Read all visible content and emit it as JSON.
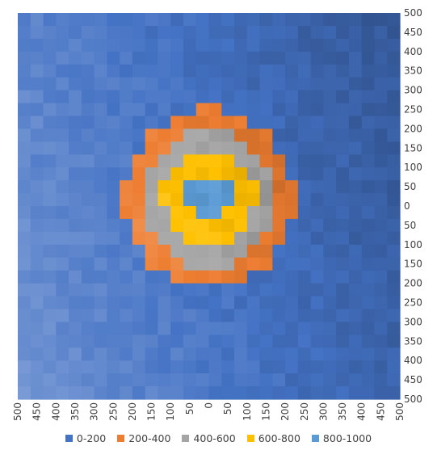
{
  "chart_data": {
    "type": "heatmap",
    "subtype": "3d-surface-contour-top-view",
    "x": [
      500,
      450,
      400,
      350,
      300,
      250,
      200,
      150,
      100,
      50,
      0,
      50,
      100,
      150,
      200,
      250,
      300,
      350,
      400,
      450,
      500
    ],
    "y": [
      500,
      450,
      400,
      350,
      300,
      250,
      200,
      150,
      100,
      50,
      0,
      50,
      100,
      150,
      200,
      250,
      300,
      350,
      400,
      450,
      500
    ],
    "xlabel": "",
    "ylabel": "",
    "zbands": [
      {
        "name": "0-200",
        "min": 0,
        "max": 200,
        "color": "#4472C4"
      },
      {
        "name": "200-400",
        "min": 200,
        "max": 400,
        "color": "#ED7D31"
      },
      {
        "name": "400-600",
        "min": 400,
        "max": 600,
        "color": "#A5A5A5"
      },
      {
        "name": "600-800",
        "min": 600,
        "max": 800,
        "color": "#FFC000"
      },
      {
        "name": "800-1000",
        "min": 800,
        "max": 1000,
        "color": "#5B9BD5"
      }
    ],
    "legend_position": "bottom",
    "grid": false
  }
}
